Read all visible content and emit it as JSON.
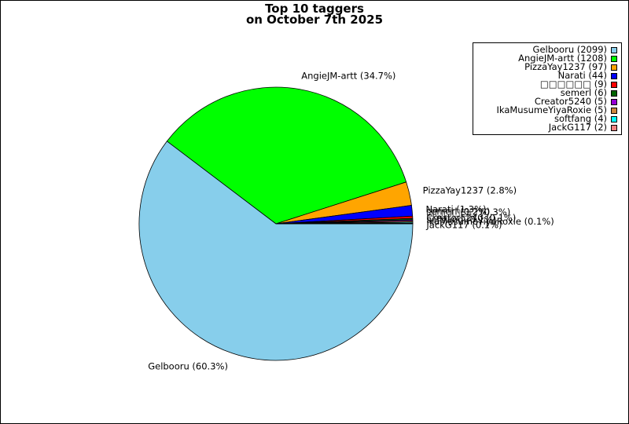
{
  "chart_data": {
    "type": "pie",
    "title_line1": "Top 10 taggers",
    "title_line2": "on October 7th 2025",
    "legend_position": "top-right",
    "slices": [
      {
        "name": "Gelbooru",
        "value": 2099,
        "color": "#87ceeb",
        "legend": "Gelbooru (2099)",
        "label": "Gelbooru (60.3%)"
      },
      {
        "name": "AngieJM-artt",
        "value": 1208,
        "color": "#00ff00",
        "legend": "AngieJM-artt (1208)",
        "label": "AngieJM-artt (34.7%)"
      },
      {
        "name": "PizzaYay1237",
        "value": 97,
        "color": "#ffa500",
        "legend": "PizzaYay1237 (97)",
        "label": "PizzaYay1237 (2.8%)"
      },
      {
        "name": "Narati",
        "value": 44,
        "color": "#0000ff",
        "legend": "Narati (44)",
        "label": "Narati (1.3%)"
      },
      {
        "name": "□□□□□□",
        "value": 9,
        "color": "#ff0000",
        "legend": "□□□□□□ (9)",
        "label": "□□□□□□ (0.3%)"
      },
      {
        "name": "semerl",
        "value": 6,
        "color": "#006400",
        "legend": "semerl (6)",
        "label": "semerl (0.2%)"
      },
      {
        "name": "Creator5240",
        "value": 5,
        "color": "#9400d3",
        "legend": "Creator5240 (5)",
        "label": "Creator5240 (0.1%)"
      },
      {
        "name": "IkaMusumeYiyaRoxie",
        "value": 5,
        "color": "#cd853f",
        "legend": "IkaMusumeYiyaRoxie (5)",
        "label": "IkaMusumeYiyaRoxie (0.1%)"
      },
      {
        "name": "softfang",
        "value": 4,
        "color": "#00ffff",
        "legend": "softfang (4)",
        "label": "softfang (0.1%)"
      },
      {
        "name": "JackG117",
        "value": 2,
        "color": "#f08080",
        "legend": "JackG117 (2)",
        "label": "JackG117 (0.1%)"
      }
    ]
  }
}
